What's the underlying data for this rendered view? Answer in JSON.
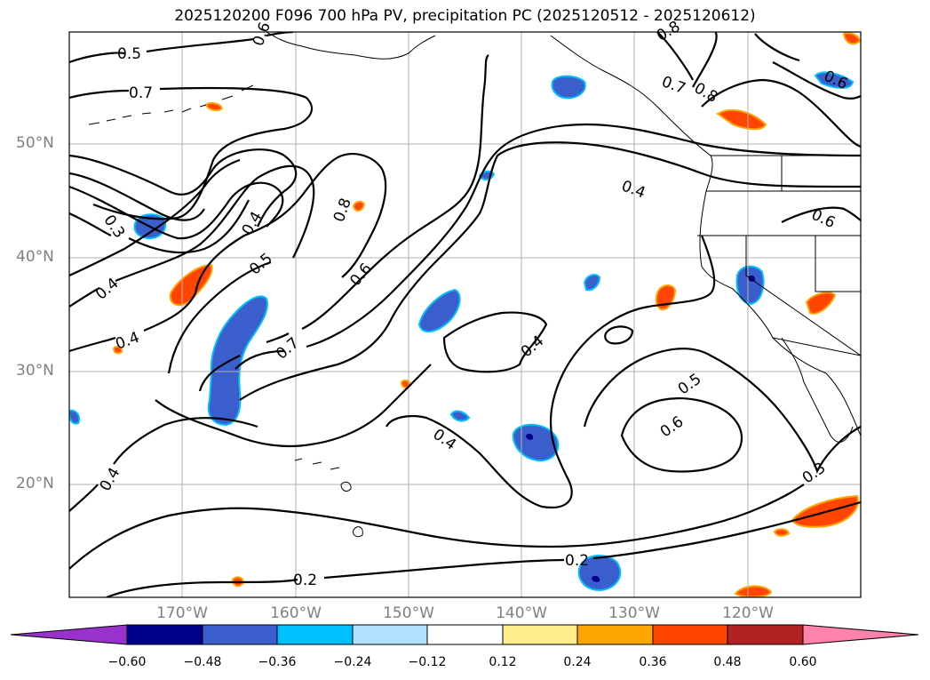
{
  "title": "2025120200 F096 700 hPa PV, precipitation PC (2025120512 - 2025120612)",
  "map": {
    "extent": {
      "lon_min": -180,
      "lon_max": -110,
      "lat_min": 10,
      "lat_max": 60
    },
    "grid": true,
    "lat_labels": [
      "20°N",
      "30°N",
      "40°N",
      "50°N"
    ],
    "lon_labels": [
      "170°W",
      "160°W",
      "150°W",
      "140°W",
      "130°W",
      "120°W"
    ],
    "contour_labels": [
      "0.5",
      "0.6",
      "0.7",
      "0.8",
      "0.7",
      "0.8",
      "0.6",
      "0.4",
      "0.6",
      "0.3",
      "0.4",
      "0.5",
      "0.8",
      "0.6",
      "0.4",
      "0.7",
      "0.4",
      "0.4",
      "0.5",
      "0.6",
      "0.4",
      "0.3",
      "0.4",
      "0.2",
      "0.2"
    ],
    "colors": {
      "contour": "#000000",
      "coast": "#000000",
      "grid": "#b0b0b0"
    }
  },
  "colorbar": {
    "ticks": [
      "−0.60",
      "−0.48",
      "−0.36",
      "−0.24",
      "−0.12",
      "0.12",
      "0.24",
      "0.36",
      "0.48",
      "0.60"
    ],
    "colors": [
      "#9932cc",
      "#00008b",
      "#3a5fcd",
      "#00bfff",
      "#b0e2ff",
      "#ffffff",
      "#ffec8b",
      "#ffa500",
      "#ff4500",
      "#b22222",
      "#ff82ab"
    ]
  }
}
